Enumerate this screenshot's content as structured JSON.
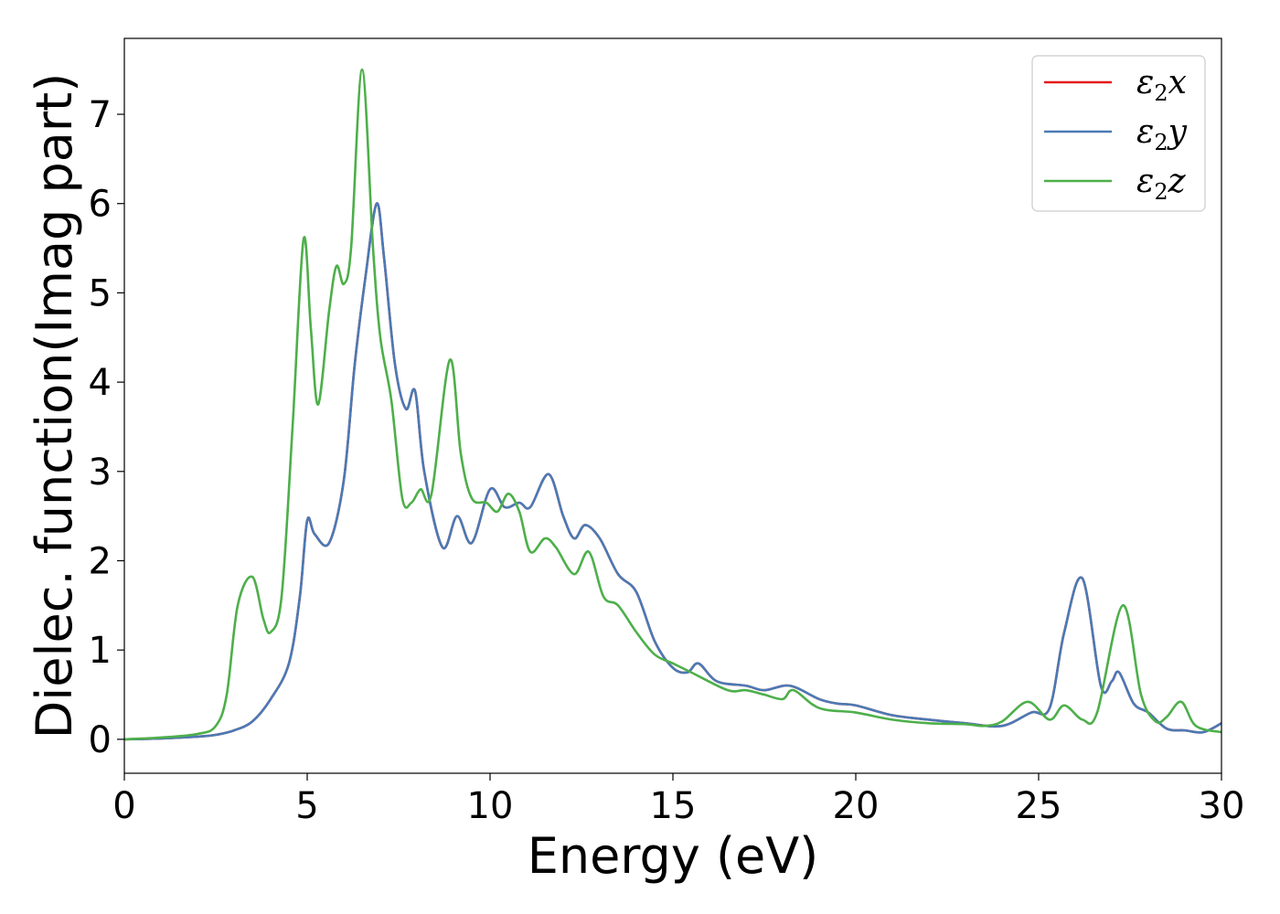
{
  "chart_data": {
    "type": "line",
    "xlabel": "Energy (eV)",
    "ylabel": "Dielec. function(Imag part)",
    "xlim": [
      0,
      30
    ],
    "ylim": [
      -0.38,
      7.85
    ],
    "xticks": [
      0,
      5,
      10,
      15,
      20,
      25,
      30
    ],
    "yticks": [
      0,
      1,
      2,
      3,
      4,
      5,
      6,
      7
    ],
    "grid": false,
    "legend_position": "top-right",
    "series": [
      {
        "name": "ε₂x",
        "legend_main": "ε",
        "legend_sub": "2",
        "legend_tail": "x",
        "color": "#e41a1c",
        "points": [
          [
            0,
            0
          ],
          [
            1,
            0.01
          ],
          [
            2,
            0.03
          ],
          [
            2.5,
            0.05
          ],
          [
            3,
            0.1
          ],
          [
            3.5,
            0.2
          ],
          [
            4,
            0.45
          ],
          [
            4.5,
            0.85
          ],
          [
            4.8,
            1.6
          ],
          [
            5.0,
            2.45
          ],
          [
            5.2,
            2.3
          ],
          [
            5.6,
            2.2
          ],
          [
            6.0,
            2.9
          ],
          [
            6.3,
            4.2
          ],
          [
            6.6,
            5.2
          ],
          [
            6.9,
            6.0
          ],
          [
            7.1,
            5.4
          ],
          [
            7.4,
            4.2
          ],
          [
            7.7,
            3.7
          ],
          [
            7.95,
            3.9
          ],
          [
            8.2,
            3.0
          ],
          [
            8.7,
            2.15
          ],
          [
            9.1,
            2.5
          ],
          [
            9.5,
            2.2
          ],
          [
            10.0,
            2.8
          ],
          [
            10.4,
            2.6
          ],
          [
            10.8,
            2.65
          ],
          [
            11.1,
            2.6
          ],
          [
            11.6,
            2.97
          ],
          [
            12.0,
            2.5
          ],
          [
            12.3,
            2.25
          ],
          [
            12.6,
            2.4
          ],
          [
            13.0,
            2.25
          ],
          [
            13.5,
            1.85
          ],
          [
            14.0,
            1.65
          ],
          [
            14.5,
            1.1
          ],
          [
            15.0,
            0.8
          ],
          [
            15.4,
            0.75
          ],
          [
            15.7,
            0.85
          ],
          [
            16.2,
            0.65
          ],
          [
            17,
            0.6
          ],
          [
            17.5,
            0.55
          ],
          [
            18.2,
            0.6
          ],
          [
            19,
            0.45
          ],
          [
            19.5,
            0.4
          ],
          [
            20,
            0.38
          ],
          [
            21,
            0.27
          ],
          [
            22,
            0.22
          ],
          [
            23,
            0.18
          ],
          [
            24,
            0.15
          ],
          [
            24.8,
            0.3
          ],
          [
            25.3,
            0.35
          ],
          [
            25.7,
            1.2
          ],
          [
            26.2,
            1.8
          ],
          [
            26.7,
            0.6
          ],
          [
            27.0,
            0.65
          ],
          [
            27.2,
            0.75
          ],
          [
            27.6,
            0.4
          ],
          [
            28.0,
            0.3
          ],
          [
            28.5,
            0.12
          ],
          [
            29,
            0.1
          ],
          [
            29.5,
            0.08
          ],
          [
            30,
            0.18
          ]
        ]
      },
      {
        "name": "ε₂y",
        "legend_main": "ε",
        "legend_sub": "2",
        "legend_tail": "y",
        "color": "#4a7ab5",
        "points": [
          [
            0,
            0
          ],
          [
            1,
            0.01
          ],
          [
            2,
            0.03
          ],
          [
            2.5,
            0.05
          ],
          [
            3,
            0.1
          ],
          [
            3.5,
            0.2
          ],
          [
            4,
            0.45
          ],
          [
            4.5,
            0.85
          ],
          [
            4.8,
            1.6
          ],
          [
            5.0,
            2.45
          ],
          [
            5.2,
            2.3
          ],
          [
            5.6,
            2.2
          ],
          [
            6.0,
            2.9
          ],
          [
            6.3,
            4.2
          ],
          [
            6.6,
            5.2
          ],
          [
            6.9,
            6.0
          ],
          [
            7.1,
            5.4
          ],
          [
            7.4,
            4.2
          ],
          [
            7.7,
            3.7
          ],
          [
            7.95,
            3.9
          ],
          [
            8.2,
            3.0
          ],
          [
            8.7,
            2.15
          ],
          [
            9.1,
            2.5
          ],
          [
            9.5,
            2.2
          ],
          [
            10.0,
            2.8
          ],
          [
            10.4,
            2.6
          ],
          [
            10.8,
            2.65
          ],
          [
            11.1,
            2.6
          ],
          [
            11.6,
            2.97
          ],
          [
            12.0,
            2.5
          ],
          [
            12.3,
            2.25
          ],
          [
            12.6,
            2.4
          ],
          [
            13.0,
            2.25
          ],
          [
            13.5,
            1.85
          ],
          [
            14.0,
            1.65
          ],
          [
            14.5,
            1.1
          ],
          [
            15.0,
            0.8
          ],
          [
            15.4,
            0.75
          ],
          [
            15.7,
            0.85
          ],
          [
            16.2,
            0.65
          ],
          [
            17,
            0.6
          ],
          [
            17.5,
            0.55
          ],
          [
            18.2,
            0.6
          ],
          [
            19,
            0.45
          ],
          [
            19.5,
            0.4
          ],
          [
            20,
            0.38
          ],
          [
            21,
            0.27
          ],
          [
            22,
            0.22
          ],
          [
            23,
            0.18
          ],
          [
            24,
            0.15
          ],
          [
            24.8,
            0.3
          ],
          [
            25.3,
            0.35
          ],
          [
            25.7,
            1.2
          ],
          [
            26.2,
            1.8
          ],
          [
            26.7,
            0.6
          ],
          [
            27.0,
            0.65
          ],
          [
            27.2,
            0.75
          ],
          [
            27.6,
            0.4
          ],
          [
            28.0,
            0.3
          ],
          [
            28.5,
            0.12
          ],
          [
            29,
            0.1
          ],
          [
            29.5,
            0.08
          ],
          [
            30,
            0.18
          ]
        ]
      },
      {
        "name": "ε₂z",
        "legend_main": "ε",
        "legend_sub": "2",
        "legend_tail": "z",
        "color": "#4daf4a",
        "points": [
          [
            0,
            0
          ],
          [
            1,
            0.02
          ],
          [
            2,
            0.06
          ],
          [
            2.5,
            0.15
          ],
          [
            2.8,
            0.5
          ],
          [
            3.1,
            1.5
          ],
          [
            3.5,
            1.82
          ],
          [
            3.8,
            1.35
          ],
          [
            4.0,
            1.2
          ],
          [
            4.3,
            1.6
          ],
          [
            4.6,
            3.5
          ],
          [
            4.9,
            5.6
          ],
          [
            5.1,
            4.6
          ],
          [
            5.3,
            3.75
          ],
          [
            5.6,
            4.8
          ],
          [
            5.8,
            5.3
          ],
          [
            6.0,
            5.1
          ],
          [
            6.2,
            5.5
          ],
          [
            6.5,
            7.5
          ],
          [
            6.8,
            5.5
          ],
          [
            7.0,
            4.5
          ],
          [
            7.3,
            3.8
          ],
          [
            7.6,
            2.7
          ],
          [
            7.85,
            2.65
          ],
          [
            8.1,
            2.8
          ],
          [
            8.4,
            2.75
          ],
          [
            8.9,
            4.25
          ],
          [
            9.2,
            3.2
          ],
          [
            9.5,
            2.7
          ],
          [
            9.9,
            2.65
          ],
          [
            10.2,
            2.55
          ],
          [
            10.5,
            2.75
          ],
          [
            10.8,
            2.55
          ],
          [
            11.1,
            2.1
          ],
          [
            11.5,
            2.25
          ],
          [
            11.8,
            2.15
          ],
          [
            12.3,
            1.85
          ],
          [
            12.7,
            2.1
          ],
          [
            13.1,
            1.6
          ],
          [
            13.5,
            1.5
          ],
          [
            14.0,
            1.2
          ],
          [
            14.5,
            0.95
          ],
          [
            15.0,
            0.85
          ],
          [
            15.5,
            0.75
          ],
          [
            16.5,
            0.55
          ],
          [
            17.0,
            0.55
          ],
          [
            17.5,
            0.5
          ],
          [
            18.0,
            0.45
          ],
          [
            18.3,
            0.55
          ],
          [
            19,
            0.35
          ],
          [
            20,
            0.3
          ],
          [
            21,
            0.22
          ],
          [
            22,
            0.18
          ],
          [
            23,
            0.17
          ],
          [
            23.5,
            0.15
          ],
          [
            24,
            0.2
          ],
          [
            24.7,
            0.42
          ],
          [
            25.3,
            0.22
          ],
          [
            25.7,
            0.38
          ],
          [
            26.2,
            0.22
          ],
          [
            26.6,
            0.3
          ],
          [
            27.3,
            1.5
          ],
          [
            27.8,
            0.5
          ],
          [
            28.2,
            0.2
          ],
          [
            28.5,
            0.25
          ],
          [
            28.9,
            0.42
          ],
          [
            29.3,
            0.15
          ],
          [
            30,
            0.08
          ]
        ]
      }
    ]
  }
}
